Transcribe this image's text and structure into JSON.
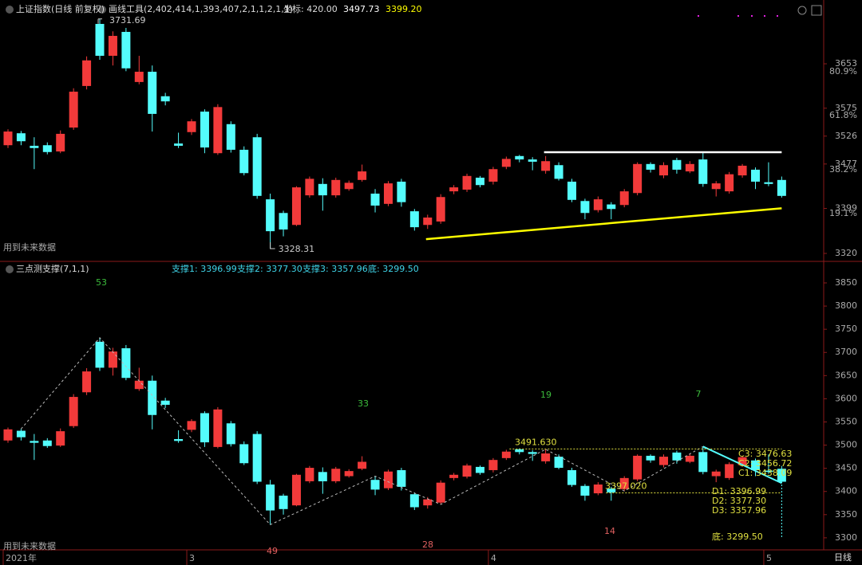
{
  "chart_data": [
    {
      "type": "candlestick",
      "title": "上证指数(日线 前复权)",
      "tool": "画线工具(2,402,414,1,393,407,2,1,1,2,1,1)",
      "coord": "坐标: 420.00",
      "cursor_values": [
        {
          "value": 3497.73,
          "label": "3497.73",
          "color": "#ffffff"
        },
        {
          "value": 3399.2,
          "label": "3399.20",
          "color": "#ffff00"
        }
      ],
      "support_start": 3345,
      "note": "用到未来数据",
      "up_color": "#f23a3a",
      "down_color": "#54fcfc",
      "open": [
        3510,
        3531,
        3509,
        3510,
        3499,
        3541,
        3614,
        3723,
        3667,
        3709,
        3621,
        3639,
        3596,
        3513,
        3533,
        3569,
        3496,
        3547,
        3502,
        3524,
        3415,
        3391,
        3370,
        3422,
        3442,
        3422,
        3433,
        3449,
        3425,
        3407,
        3446,
        3394,
        3370,
        3376,
        3429,
        3432,
        3453,
        3446,
        3472,
        3491,
        3485,
        3465,
        3475,
        3446,
        3412,
        3396,
        3406,
        3405,
        3426,
        3477,
        3457,
        3484,
        3464,
        3485,
        3433,
        3429,
        3457,
        3467,
        3445,
        3449
      ],
      "high": [
        3538,
        3535,
        3524,
        3515,
        3536,
        3610,
        3666,
        3731.69,
        3710,
        3716,
        3667,
        3650,
        3602,
        3532,
        3556,
        3573,
        3582,
        3552,
        3508,
        3530,
        3425,
        3395,
        3438,
        3455,
        3452,
        3453,
        3448,
        3476,
        3433,
        3447,
        3451,
        3398,
        3388,
        3424,
        3440,
        3460,
        3456,
        3472,
        3490,
        3493,
        3489,
        3491,
        3480,
        3451,
        3416,
        3420,
        3410,
        3433,
        3480,
        3480,
        3480,
        3488,
        3482,
        3497,
        3447,
        3463,
        3477,
        3471,
        3480,
        3455
      ],
      "low": [
        3505,
        3510,
        3468,
        3494,
        3496,
        3537,
        3608,
        3660,
        3650,
        3640,
        3617,
        3534,
        3580,
        3505,
        3528,
        3496,
        3493,
        3497,
        3457,
        3416,
        3328.31,
        3350,
        3368,
        3418,
        3395,
        3418,
        3430,
        3446,
        3392,
        3403,
        3402,
        3360,
        3363,
        3372,
        3424,
        3428,
        3436,
        3441,
        3468,
        3480,
        3466,
        3460,
        3448,
        3410,
        3380,
        3392,
        3380,
        3401,
        3422,
        3462,
        3452,
        3460,
        3461,
        3437,
        3420,
        3425,
        3453,
        3433,
        3438,
        3418
      ],
      "close": [
        3534,
        3517,
        3505,
        3498,
        3530,
        3604,
        3659,
        3667,
        3702,
        3645,
        3639,
        3565,
        3587,
        3509,
        3552,
        3506,
        3577,
        3502,
        3461,
        3421,
        3359,
        3362,
        3436,
        3451,
        3422,
        3449,
        3444,
        3464,
        3404,
        3443,
        3410,
        3366,
        3383,
        3419,
        3436,
        3456,
        3440,
        3468,
        3486,
        3485,
        3481,
        3482,
        3451,
        3414,
        3391,
        3415,
        3398,
        3429,
        3477,
        3467,
        3475,
        3467,
        3477,
        3442,
        3443,
        3459,
        3474,
        3446,
        3442,
        3421
      ],
      "ylim": [
        3306,
        3765
      ],
      "yticks": [
        3320,
        3399,
        3477,
        3526,
        3575,
        3653
      ],
      "fib_labels": [
        {
          "value": 3654.6,
          "label": "80.9%"
        },
        {
          "value": 3577.6,
          "label": "61.8%"
        },
        {
          "value": 3482.4,
          "label": "38.2%"
        },
        {
          "value": 3405.4,
          "label": "19.1%"
        }
      ],
      "x_labels": [
        {
          "index": 0,
          "label": "2021年"
        },
        {
          "index": 14,
          "label": "3"
        },
        {
          "index": 37,
          "label": "4"
        },
        {
          "index": 58,
          "label": "5"
        }
      ],
      "period": "日线"
    },
    {
      "type": "candlestick",
      "title": "三点测支撑(7,1,1)",
      "supports": [
        "支撑1: 3396.99",
        "支撑2: 3377.30",
        "支撑3: 3357.96",
        "底: 3299.50"
      ],
      "note": "用到未来数据",
      "ylim": [
        3274,
        3893
      ],
      "yticks": [
        3300,
        3350,
        3400,
        3450,
        3500,
        3550,
        3600,
        3650,
        3700,
        3750,
        3800,
        3850
      ],
      "counts": [
        53,
        33,
        19,
        7,
        49,
        28,
        14
      ],
      "levels": [
        {
          "value": 3491.63,
          "label": "3491.630"
        },
        {
          "value": 3397.02,
          "label": "3397.020"
        }
      ],
      "c_labels": [
        "C3: 3476.63",
        "C2: 3456.72",
        "C1: 3438.09"
      ],
      "d_labels": [
        "D1: 3396.99",
        "D2: 3377.30",
        "D3: 3357.96"
      ],
      "bottom_label": "底: 3299.50"
    }
  ]
}
